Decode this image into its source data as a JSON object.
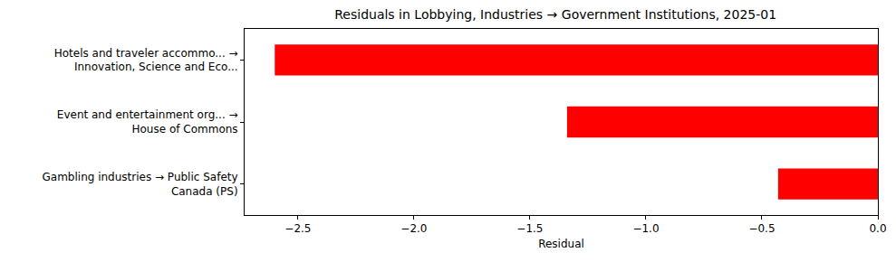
{
  "chart_data": {
    "type": "bar",
    "orientation": "horizontal",
    "title": "Residuals in Lobbying, Industries → Government Institutions, 2025-01",
    "x_label": "Residual",
    "categories": [
      "Hotels and traveler accommo... →\nInnovation, Science and Eco...",
      "Event and entertainment org... →\nHouse of Commons",
      "Gambling industries → Public Safety\nCanada (PS)"
    ],
    "values": [
      -2.6,
      -1.34,
      -0.43
    ],
    "color": "red",
    "xlim": [
      -2.73,
      0
    ],
    "xticks": [
      {
        "value": -2.5,
        "label": "−2.5"
      },
      {
        "value": -2.0,
        "label": "−2.0"
      },
      {
        "value": -1.5,
        "label": "−1.5"
      },
      {
        "value": -1.0,
        "label": "−1.0"
      },
      {
        "value": -0.5,
        "label": "−0.5"
      },
      {
        "value": 0,
        "label": "0.0"
      }
    ],
    "grid": false
  }
}
